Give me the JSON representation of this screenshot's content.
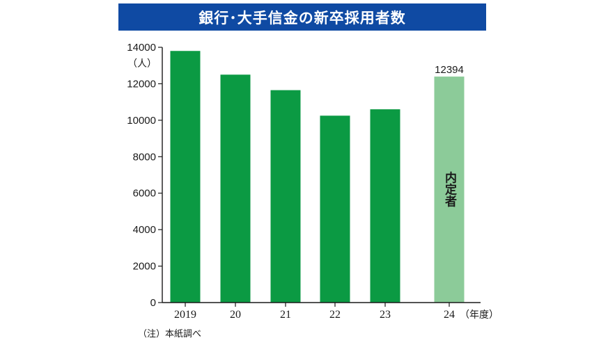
{
  "header": {
    "title": "銀行･大手信金の新卒採用者数"
  },
  "source_note": "（注）本紙調べ",
  "colors": {
    "title_bg": "#0f4aa3",
    "bar": "#0b9a43",
    "bar_highlight": "#8ccb99",
    "axis": "#1a1a1a"
  },
  "chart_data": {
    "type": "bar",
    "title": "銀行･大手信金の新卒採用者数",
    "categories": [
      "2019",
      "20",
      "21",
      "22",
      "23",
      "24"
    ],
    "values": [
      13800,
      12500,
      11650,
      10250,
      10600,
      12394
    ],
    "ylim": [
      0,
      14000
    ],
    "yticks": [
      0,
      2000,
      4000,
      6000,
      8000,
      10000,
      12000,
      14000
    ],
    "y_unit": "（人）",
    "x_unit": "（年度）",
    "highlight_index": 5,
    "data_labels": [
      {
        "index": 5,
        "text": "12394"
      }
    ],
    "bar_annotations": [
      {
        "index": 5,
        "text": "内定者"
      }
    ],
    "grid": false,
    "legend": "none"
  }
}
